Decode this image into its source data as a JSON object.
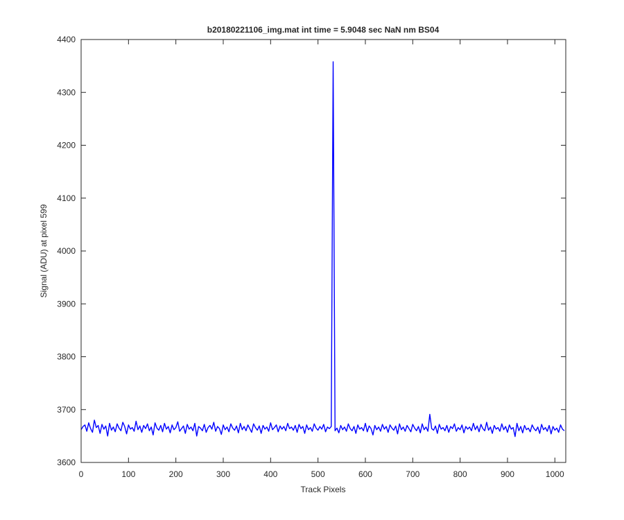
{
  "chart_data": {
    "type": "line",
    "title": "b20180221106_img.mat int time = 5.9048 sec  NaN nm BS04",
    "xlabel": "Track Pixels",
    "ylabel": "Signal (ADU) at pixel 599",
    "xlim": [
      0,
      1023
    ],
    "ylim": [
      3600,
      4400
    ],
    "xticks": [
      0,
      100,
      200,
      300,
      400,
      500,
      600,
      700,
      800,
      900,
      1000
    ],
    "yticks": [
      3600,
      3700,
      3800,
      3900,
      4000,
      4100,
      4200,
      4300,
      4400
    ],
    "grid": false,
    "x": [
      0,
      4,
      8,
      12,
      16,
      20,
      24,
      28,
      32,
      36,
      40,
      44,
      48,
      52,
      56,
      60,
      64,
      68,
      72,
      76,
      80,
      84,
      88,
      92,
      96,
      100,
      104,
      108,
      112,
      116,
      120,
      124,
      128,
      132,
      136,
      140,
      144,
      148,
      152,
      156,
      160,
      164,
      168,
      172,
      176,
      180,
      184,
      188,
      192,
      196,
      200,
      204,
      208,
      212,
      216,
      220,
      224,
      228,
      232,
      236,
      240,
      244,
      248,
      252,
      256,
      260,
      264,
      268,
      272,
      276,
      280,
      284,
      288,
      292,
      296,
      300,
      304,
      308,
      312,
      316,
      320,
      324,
      328,
      332,
      336,
      340,
      344,
      348,
      352,
      356,
      360,
      364,
      368,
      372,
      376,
      380,
      384,
      388,
      392,
      396,
      400,
      404,
      408,
      412,
      416,
      420,
      424,
      428,
      432,
      436,
      440,
      444,
      448,
      452,
      456,
      460,
      464,
      468,
      472,
      476,
      480,
      484,
      488,
      492,
      496,
      500,
      504,
      508,
      512,
      516,
      520,
      524,
      528,
      532,
      536,
      540,
      544,
      548,
      552,
      556,
      560,
      564,
      568,
      572,
      576,
      580,
      584,
      588,
      592,
      596,
      600,
      604,
      608,
      612,
      616,
      620,
      624,
      628,
      632,
      636,
      640,
      644,
      648,
      652,
      656,
      660,
      664,
      668,
      672,
      676,
      680,
      684,
      688,
      692,
      696,
      700,
      704,
      708,
      712,
      716,
      720,
      724,
      728,
      732,
      736,
      740,
      744,
      748,
      752,
      756,
      760,
      764,
      768,
      772,
      776,
      780,
      784,
      788,
      792,
      796,
      800,
      804,
      808,
      812,
      816,
      820,
      824,
      828,
      832,
      836,
      840,
      844,
      848,
      852,
      856,
      860,
      864,
      868,
      872,
      876,
      880,
      884,
      888,
      892,
      896,
      900,
      904,
      908,
      912,
      916,
      920,
      924,
      928,
      932,
      936,
      940,
      944,
      948,
      952,
      956,
      960,
      964,
      968,
      972,
      976,
      980,
      984,
      988,
      992,
      996,
      1000,
      1004,
      1008,
      1012,
      1016,
      1020
    ],
    "series": [
      {
        "color": "#0000ff",
        "values": [
          3662,
          3668,
          3671,
          3659,
          3675,
          3664,
          3657,
          3680,
          3666,
          3670,
          3655,
          3672,
          3663,
          3669,
          3650,
          3674,
          3661,
          3667,
          3658,
          3673,
          3665,
          3660,
          3676,
          3668,
          3654,
          3671,
          3663,
          3666,
          3659,
          3678,
          3662,
          3669,
          3657,
          3670,
          3664,
          3673,
          3660,
          3667,
          3652,
          3675,
          3665,
          3661,
          3670,
          3658,
          3674,
          3663,
          3668,
          3656,
          3671,
          3662,
          3666,
          3677,
          3659,
          3664,
          3669,
          3655,
          3672,
          3663,
          3667,
          3660,
          3674,
          3650,
          3668,
          3665,
          3660,
          3672,
          3657,
          3666,
          3670,
          3663,
          3676,
          3659,
          3668,
          3664,
          3653,
          3671,
          3662,
          3667,
          3658,
          3673,
          3665,
          3661,
          3669,
          3656,
          3674,
          3662,
          3668,
          3660,
          3671,
          3664,
          3657,
          3673,
          3666,
          3661,
          3669,
          3655,
          3670,
          3663,
          3667,
          3659,
          3675,
          3662,
          3666,
          3671,
          3658,
          3669,
          3663,
          3668,
          3660,
          3674,
          3664,
          3667,
          3661,
          3670,
          3657,
          3672,
          3664,
          3668,
          3655,
          3671,
          3662,
          3666,
          3659,
          3673,
          3665,
          3661,
          3668,
          3663,
          3672,
          3658,
          3667,
          3664,
          3668,
          4358,
          3660,
          3665,
          3656,
          3670,
          3662,
          3667,
          3659,
          3673,
          3664,
          3660,
          3668,
          3655,
          3671,
          3663,
          3666,
          3660,
          3674,
          3658,
          3669,
          3664,
          3652,
          3670,
          3662,
          3667,
          3659,
          3672,
          3663,
          3668,
          3657,
          3671,
          3665,
          3661,
          3669,
          3654,
          3673,
          3662,
          3667,
          3659,
          3670,
          3664,
          3658,
          3672,
          3665,
          3660,
          3668,
          3656,
          3673,
          3662,
          3667,
          3659,
          3691,
          3664,
          3661,
          3669,
          3655,
          3672,
          3663,
          3666,
          3660,
          3670,
          3657,
          3668,
          3664,
          3673,
          3659,
          3666,
          3662,
          3671,
          3656,
          3668,
          3663,
          3667,
          3660,
          3674,
          3662,
          3669,
          3658,
          3672,
          3664,
          3660,
          3676,
          3661,
          3667,
          3655,
          3670,
          3663,
          3666,
          3659,
          3673,
          3662,
          3668,
          3657,
          3671,
          3663,
          3666,
          3649,
          3674,
          3660,
          3668,
          3656,
          3670,
          3662,
          3665,
          3658,
          3671,
          3664,
          3660,
          3667,
          3655,
          3672,
          3662,
          3666,
          3659,
          3670,
          3654,
          3668,
          3661,
          3665,
          3657,
          3671,
          3663,
          3660
        ]
      }
    ]
  }
}
